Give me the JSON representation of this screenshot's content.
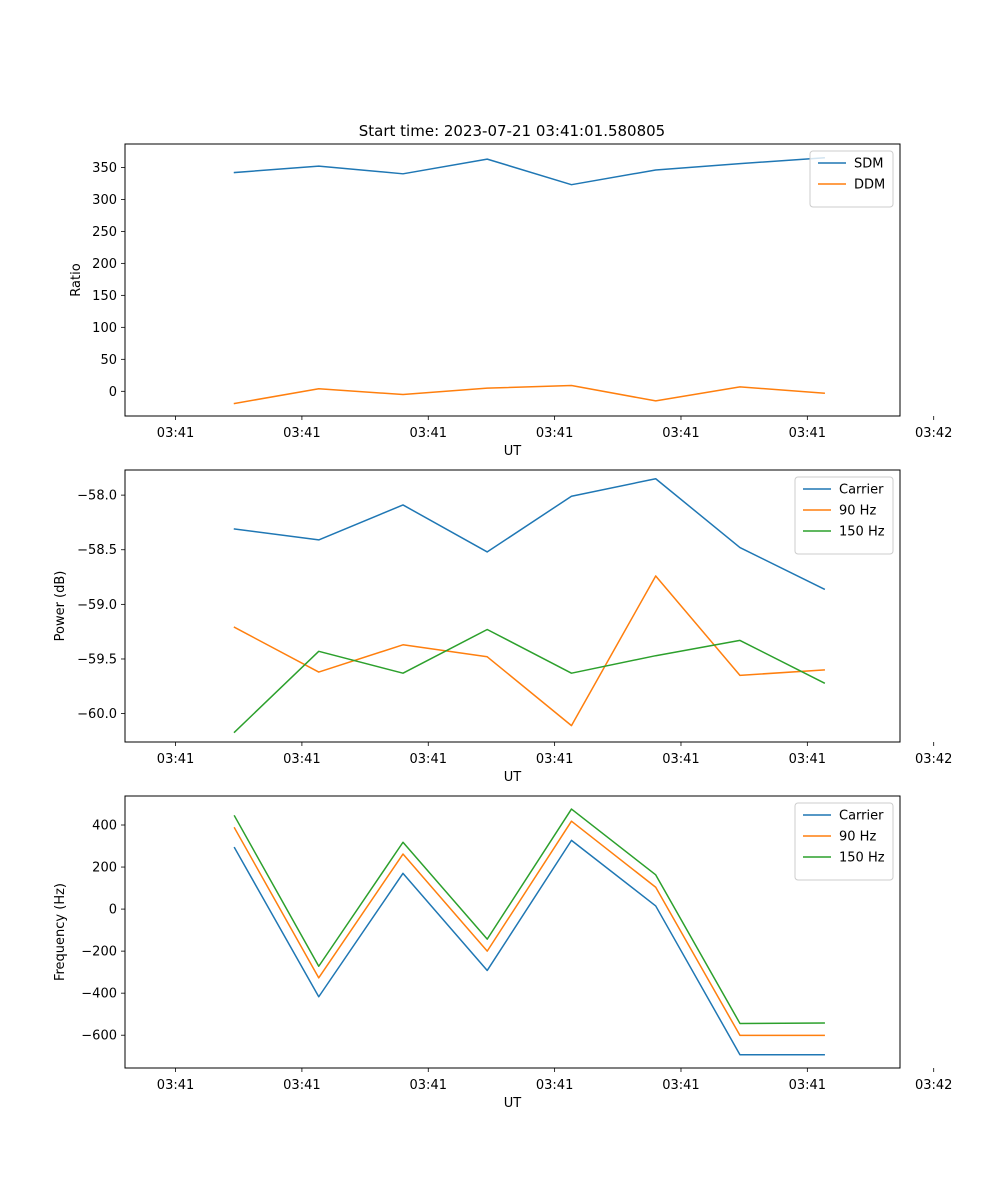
{
  "figure": {
    "title": "Start time: 2023-07-21 03:41:01.580805"
  },
  "colors": {
    "blue": "#1f77b4",
    "orange": "#ff7f0e",
    "green": "#2ca02c"
  },
  "chart_data": [
    {
      "type": "line",
      "xlabel": "UT",
      "ylabel": "Ratio",
      "ylim": [
        -38.6,
        386.6
      ],
      "yticks": [
        0,
        50,
        100,
        150,
        200,
        250,
        300,
        350
      ],
      "ytick_labels": [
        "0",
        "50",
        "100",
        "150",
        "200",
        "250",
        "300",
        "350"
      ],
      "xlim": [
        -0.6,
        8.6
      ],
      "xticks": [
        0,
        1.5,
        3,
        4.5,
        6,
        7.5,
        9
      ],
      "xtick_labels": [
        "03:41",
        "03:41",
        "03:41",
        "03:41",
        "03:41",
        "03:41",
        "03:42"
      ],
      "x": [
        0.7,
        1.7,
        2.7,
        3.7,
        4.7,
        5.7,
        6.7,
        7.7
      ],
      "legend_position": "upper-right",
      "series": [
        {
          "name": "SDM",
          "color": "blue",
          "values": [
            342,
            352,
            340,
            363,
            323,
            346,
            356,
            365
          ]
        },
        {
          "name": "DDM",
          "color": "orange",
          "values": [
            -19,
            4,
            -5,
            5,
            9,
            -15,
            7,
            -3
          ]
        }
      ]
    },
    {
      "type": "line",
      "xlabel": "UT",
      "ylabel": "Power (dB)",
      "ylim": [
        -60.26,
        -57.77
      ],
      "yticks": [
        -60.0,
        -59.5,
        -59.0,
        -58.5,
        -58.0
      ],
      "ytick_labels": [
        "−60.0",
        "−59.5",
        "−59.0",
        "−58.5",
        "−58.0"
      ],
      "xlim": [
        -0.6,
        8.6
      ],
      "xticks": [
        0,
        1.5,
        3,
        4.5,
        6,
        7.5,
        9
      ],
      "xtick_labels": [
        "03:41",
        "03:41",
        "03:41",
        "03:41",
        "03:41",
        "03:41",
        "03:42"
      ],
      "x": [
        0.7,
        1.7,
        2.7,
        3.7,
        4.7,
        5.7,
        6.7,
        7.7
      ],
      "legend_position": "upper-right",
      "series": [
        {
          "name": "Carrier",
          "color": "blue",
          "values": [
            -58.31,
            -58.41,
            -58.09,
            -58.52,
            -58.01,
            -57.85,
            -58.48,
            -58.86
          ]
        },
        {
          "name": "90 Hz",
          "color": "orange",
          "values": [
            -59.21,
            -59.62,
            -59.37,
            -59.48,
            -60.11,
            -58.74,
            -59.65,
            -59.6
          ]
        },
        {
          "name": "150 Hz",
          "color": "green",
          "values": [
            -60.17,
            -59.43,
            -59.63,
            -59.23,
            -59.63,
            -59.47,
            -59.33,
            -59.72
          ]
        }
      ]
    },
    {
      "type": "line",
      "xlabel": "UT",
      "ylabel": "Frequency (Hz)",
      "ylim": [
        -756,
        538
      ],
      "yticks": [
        -600,
        -400,
        -200,
        0,
        200,
        400
      ],
      "ytick_labels": [
        "−600",
        "−400",
        "−200",
        "0",
        "200",
        "400"
      ],
      "xlim": [
        -0.6,
        8.6
      ],
      "xticks": [
        0,
        1.5,
        3,
        4.5,
        6,
        7.5,
        9
      ],
      "xtick_labels": [
        "03:41",
        "03:41",
        "03:41",
        "03:41",
        "03:41",
        "03:41",
        "03:42"
      ],
      "x": [
        0.7,
        1.7,
        2.7,
        3.7,
        4.7,
        5.7,
        6.7,
        7.7
      ],
      "legend_position": "upper-right",
      "series": [
        {
          "name": "Carrier",
          "color": "blue",
          "values": [
            292,
            -417,
            170,
            -292,
            327,
            15,
            -693,
            -693
          ]
        },
        {
          "name": "90 Hz",
          "color": "orange",
          "values": [
            386,
            -327,
            262,
            -200,
            418,
            104,
            -601,
            -601
          ]
        },
        {
          "name": "150 Hz",
          "color": "green",
          "values": [
            443,
            -272,
            318,
            -143,
            476,
            163,
            -544,
            -542
          ]
        }
      ]
    }
  ]
}
